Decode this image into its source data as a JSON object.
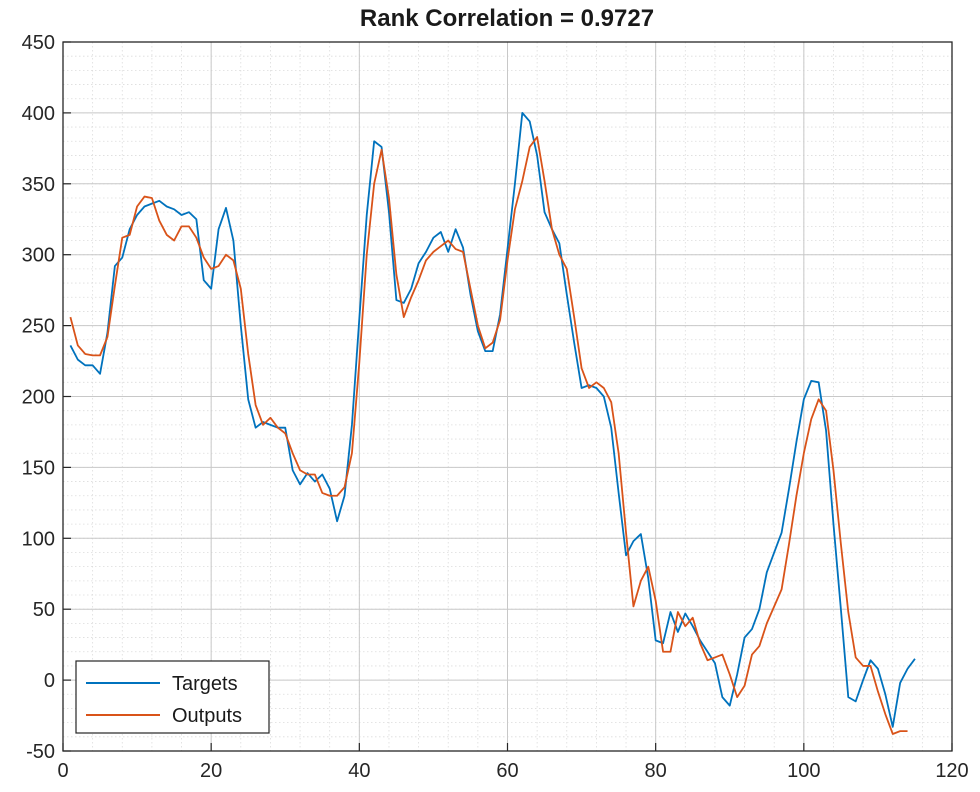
{
  "chart_data": {
    "type": "line",
    "title": "Rank Correlation = 0.9727",
    "xlabel": "",
    "ylabel": "",
    "xlim": [
      0,
      120
    ],
    "ylim": [
      -50,
      450
    ],
    "xticks": [
      0,
      20,
      40,
      60,
      80,
      100,
      120
    ],
    "yticks": [
      -50,
      0,
      50,
      100,
      150,
      200,
      250,
      300,
      350,
      400,
      450
    ],
    "grid": true,
    "minor_grid": true,
    "legend_position": "bottom-left",
    "series": [
      {
        "name": "Targets",
        "color": "#0072BD",
        "points": [
          [
            1,
            236
          ],
          [
            2,
            226
          ],
          [
            3,
            222
          ],
          [
            4,
            222
          ],
          [
            5,
            216
          ],
          [
            6,
            245
          ],
          [
            7,
            292
          ],
          [
            8,
            298
          ],
          [
            9,
            318
          ],
          [
            10,
            328
          ],
          [
            11,
            334
          ],
          [
            12,
            336
          ],
          [
            13,
            338
          ],
          [
            14,
            334
          ],
          [
            15,
            332
          ],
          [
            16,
            328
          ],
          [
            17,
            330
          ],
          [
            18,
            325
          ],
          [
            19,
            282
          ],
          [
            20,
            276
          ],
          [
            21,
            318
          ],
          [
            22,
            333
          ],
          [
            23,
            310
          ],
          [
            24,
            250
          ],
          [
            25,
            198
          ],
          [
            26,
            178
          ],
          [
            27,
            182
          ],
          [
            28,
            180
          ],
          [
            29,
            178
          ],
          [
            30,
            178
          ],
          [
            31,
            148
          ],
          [
            32,
            138
          ],
          [
            33,
            146
          ],
          [
            34,
            140
          ],
          [
            35,
            145
          ],
          [
            36,
            135
          ],
          [
            37,
            112
          ],
          [
            38,
            130
          ],
          [
            39,
            180
          ],
          [
            40,
            255
          ],
          [
            41,
            328
          ],
          [
            42,
            380
          ],
          [
            43,
            376
          ],
          [
            44,
            330
          ],
          [
            45,
            268
          ],
          [
            46,
            266
          ],
          [
            47,
            276
          ],
          [
            48,
            294
          ],
          [
            49,
            302
          ],
          [
            50,
            312
          ],
          [
            51,
            316
          ],
          [
            52,
            302
          ],
          [
            53,
            318
          ],
          [
            54,
            305
          ],
          [
            55,
            272
          ],
          [
            56,
            246
          ],
          [
            57,
            232
          ],
          [
            58,
            232
          ],
          [
            59,
            258
          ],
          [
            60,
            304
          ],
          [
            61,
            350
          ],
          [
            62,
            400
          ],
          [
            63,
            394
          ],
          [
            64,
            370
          ],
          [
            65,
            330
          ],
          [
            66,
            318
          ],
          [
            67,
            308
          ],
          [
            68,
            272
          ],
          [
            69,
            238
          ],
          [
            70,
            206
          ],
          [
            71,
            208
          ],
          [
            72,
            206
          ],
          [
            73,
            200
          ],
          [
            74,
            178
          ],
          [
            75,
            132
          ],
          [
            76,
            88
          ],
          [
            77,
            98
          ],
          [
            78,
            103
          ],
          [
            79,
            72
          ],
          [
            80,
            28
          ],
          [
            81,
            26
          ],
          [
            82,
            48
          ],
          [
            83,
            34
          ],
          [
            84,
            47
          ],
          [
            85,
            38
          ],
          [
            86,
            28
          ],
          [
            87,
            20
          ],
          [
            88,
            12
          ],
          [
            89,
            -12
          ],
          [
            90,
            -18
          ],
          [
            91,
            4
          ],
          [
            92,
            30
          ],
          [
            93,
            36
          ],
          [
            94,
            50
          ],
          [
            95,
            76
          ],
          [
            96,
            90
          ],
          [
            97,
            104
          ],
          [
            98,
            135
          ],
          [
            99,
            168
          ],
          [
            100,
            198
          ],
          [
            101,
            211
          ],
          [
            102,
            210
          ],
          [
            103,
            176
          ],
          [
            104,
            110
          ],
          [
            105,
            50
          ],
          [
            106,
            -12
          ],
          [
            107,
            -15
          ],
          [
            108,
            0
          ],
          [
            109,
            14
          ],
          [
            110,
            8
          ],
          [
            111,
            -10
          ],
          [
            112,
            -33
          ],
          [
            113,
            -2
          ],
          [
            114,
            8
          ],
          [
            115,
            15
          ]
        ]
      },
      {
        "name": "Outputs",
        "color": "#D95319",
        "points": [
          [
            1,
            256
          ],
          [
            2,
            236
          ],
          [
            3,
            230
          ],
          [
            4,
            229
          ],
          [
            5,
            229
          ],
          [
            6,
            242
          ],
          [
            7,
            278
          ],
          [
            8,
            312
          ],
          [
            9,
            314
          ],
          [
            10,
            334
          ],
          [
            11,
            341
          ],
          [
            12,
            340
          ],
          [
            13,
            324
          ],
          [
            14,
            314
          ],
          [
            15,
            310
          ],
          [
            16,
            320
          ],
          [
            17,
            320
          ],
          [
            18,
            312
          ],
          [
            19,
            298
          ],
          [
            20,
            290
          ],
          [
            21,
            292
          ],
          [
            22,
            300
          ],
          [
            23,
            296
          ],
          [
            24,
            276
          ],
          [
            25,
            230
          ],
          [
            26,
            194
          ],
          [
            27,
            180
          ],
          [
            28,
            185
          ],
          [
            29,
            178
          ],
          [
            30,
            174
          ],
          [
            31,
            160
          ],
          [
            32,
            148
          ],
          [
            33,
            145
          ],
          [
            34,
            145
          ],
          [
            35,
            132
          ],
          [
            36,
            130
          ],
          [
            37,
            130
          ],
          [
            38,
            136
          ],
          [
            39,
            160
          ],
          [
            40,
            224
          ],
          [
            41,
            300
          ],
          [
            42,
            350
          ],
          [
            43,
            374
          ],
          [
            44,
            340
          ],
          [
            45,
            286
          ],
          [
            46,
            256
          ],
          [
            47,
            270
          ],
          [
            48,
            282
          ],
          [
            49,
            296
          ],
          [
            50,
            302
          ],
          [
            51,
            306
          ],
          [
            52,
            310
          ],
          [
            53,
            304
          ],
          [
            54,
            302
          ],
          [
            55,
            276
          ],
          [
            56,
            250
          ],
          [
            57,
            234
          ],
          [
            58,
            238
          ],
          [
            59,
            254
          ],
          [
            60,
            296
          ],
          [
            61,
            332
          ],
          [
            62,
            352
          ],
          [
            63,
            376
          ],
          [
            64,
            383
          ],
          [
            65,
            352
          ],
          [
            66,
            318
          ],
          [
            67,
            300
          ],
          [
            68,
            290
          ],
          [
            69,
            256
          ],
          [
            70,
            220
          ],
          [
            71,
            206
          ],
          [
            72,
            210
          ],
          [
            73,
            206
          ],
          [
            74,
            196
          ],
          [
            75,
            160
          ],
          [
            76,
            104
          ],
          [
            77,
            52
          ],
          [
            78,
            70
          ],
          [
            79,
            80
          ],
          [
            80,
            56
          ],
          [
            81,
            20
          ],
          [
            82,
            20
          ],
          [
            83,
            48
          ],
          [
            84,
            38
          ],
          [
            85,
            44
          ],
          [
            86,
            26
          ],
          [
            87,
            14
          ],
          [
            88,
            16
          ],
          [
            89,
            18
          ],
          [
            90,
            4
          ],
          [
            91,
            -12
          ],
          [
            92,
            -4
          ],
          [
            93,
            18
          ],
          [
            94,
            24
          ],
          [
            95,
            40
          ],
          [
            96,
            52
          ],
          [
            97,
            64
          ],
          [
            98,
            96
          ],
          [
            99,
            130
          ],
          [
            100,
            160
          ],
          [
            101,
            184
          ],
          [
            102,
            198
          ],
          [
            103,
            190
          ],
          [
            104,
            148
          ],
          [
            105,
            96
          ],
          [
            106,
            48
          ],
          [
            107,
            16
          ],
          [
            108,
            10
          ],
          [
            109,
            10
          ],
          [
            110,
            -8
          ],
          [
            111,
            -24
          ],
          [
            112,
            -38
          ],
          [
            113,
            -36
          ],
          [
            114,
            -36
          ]
        ]
      }
    ]
  }
}
